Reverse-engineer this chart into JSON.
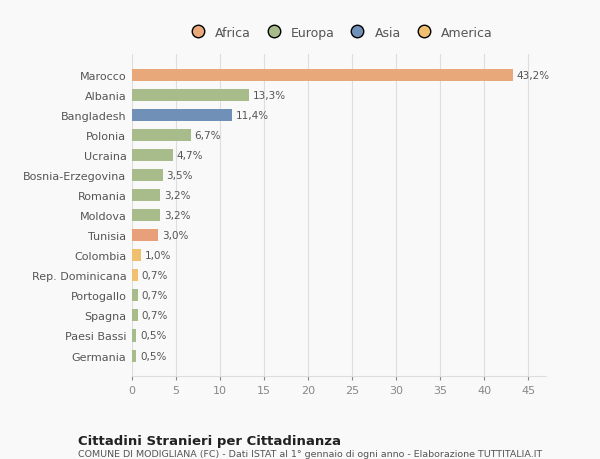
{
  "countries": [
    "Germania",
    "Paesi Bassi",
    "Spagna",
    "Portogallo",
    "Rep. Dominicana",
    "Colombia",
    "Tunisia",
    "Moldova",
    "Romania",
    "Bosnia-Erzegovina",
    "Ucraina",
    "Polonia",
    "Bangladesh",
    "Albania",
    "Marocco"
  ],
  "values": [
    0.5,
    0.5,
    0.7,
    0.7,
    0.7,
    1.0,
    3.0,
    3.2,
    3.2,
    3.5,
    4.7,
    6.7,
    11.4,
    13.3,
    43.2
  ],
  "labels": [
    "0,5%",
    "0,5%",
    "0,7%",
    "0,7%",
    "0,7%",
    "1,0%",
    "3,0%",
    "3,2%",
    "3,2%",
    "3,5%",
    "4,7%",
    "6,7%",
    "11,4%",
    "13,3%",
    "43,2%"
  ],
  "colors": [
    "#a8bb8a",
    "#a8bb8a",
    "#a8bb8a",
    "#a8bb8a",
    "#f0c070",
    "#f0c070",
    "#e8a07a",
    "#a8bb8a",
    "#a8bb8a",
    "#a8bb8a",
    "#a8bb8a",
    "#a8bb8a",
    "#7090b8",
    "#a8bb8a",
    "#e8a87a"
  ],
  "legend_labels": [
    "Africa",
    "Europa",
    "Asia",
    "America"
  ],
  "legend_colors": [
    "#e8a87a",
    "#a8bb8a",
    "#7090b8",
    "#f0c070"
  ],
  "title": "Cittadini Stranieri per Cittadinanza",
  "subtitle": "COMUNE DI MODIGLIANA (FC) - Dati ISTAT al 1° gennaio di ogni anno - Elaborazione TUTTITALIA.IT",
  "xlim": [
    0,
    47
  ],
  "xticks": [
    0,
    5,
    10,
    15,
    20,
    25,
    30,
    35,
    40,
    45
  ],
  "background_color": "#f9f9f9",
  "bar_height": 0.6,
  "grid_color": "#dddddd"
}
